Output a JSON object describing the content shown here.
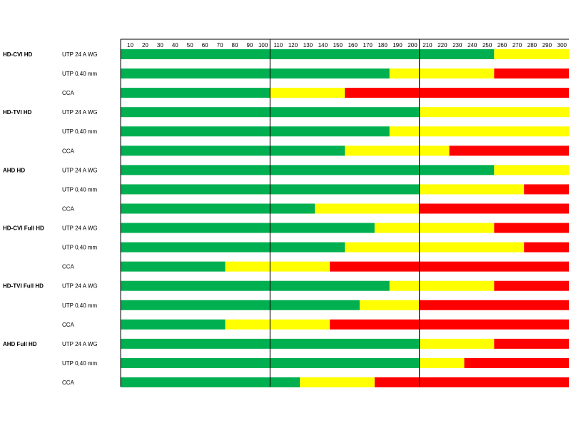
{
  "colors": {
    "good": "#00b050",
    "marginal": "#ffff00",
    "bad": "#ff0000",
    "line": "#000000"
  },
  "chart_data": {
    "type": "bar",
    "orientation": "horizontal-stacked",
    "x_ticks": [
      "10",
      "20",
      "30",
      "40",
      "50",
      "60",
      "70",
      "80",
      "90",
      "100",
      "110",
      "120",
      "130",
      "140",
      "150",
      "160",
      "170",
      "180",
      "190",
      "200",
      "210",
      "220",
      "230",
      "240",
      "250",
      "260",
      "270",
      "280",
      "290",
      "300"
    ],
    "xlim": [
      0,
      300
    ],
    "vertical_lines_at": [
      100,
      200
    ],
    "segments_order": [
      "good",
      "marginal",
      "bad"
    ],
    "rows": [
      {
        "group": "HD-CVI HD",
        "cable": "UTP 24 A WG",
        "good_end": 250,
        "marginal_end": 300
      },
      {
        "group": "",
        "cable": "UTP 0,40 mm",
        "good_end": 180,
        "marginal_end": 250
      },
      {
        "group": "",
        "cable": "CCA",
        "good_end": 100,
        "marginal_end": 150
      },
      {
        "group": "HD-TVI HD",
        "cable": "UTP 24 A WG",
        "good_end": 200,
        "marginal_end": 300
      },
      {
        "group": "",
        "cable": "UTP 0,40 mm",
        "good_end": 180,
        "marginal_end": 300
      },
      {
        "group": "",
        "cable": "CCA",
        "good_end": 150,
        "marginal_end": 220
      },
      {
        "group": "AHD HD",
        "cable": "UTP 24 A WG",
        "good_end": 250,
        "marginal_end": 300
      },
      {
        "group": "",
        "cable": "UTP 0,40 mm",
        "good_end": 200,
        "marginal_end": 270
      },
      {
        "group": "",
        "cable": "CCA",
        "good_end": 130,
        "marginal_end": 200
      },
      {
        "group": "HD-CVI Full HD",
        "cable": "UTP 24 A WG",
        "good_end": 170,
        "marginal_end": 250
      },
      {
        "group": "",
        "cable": "UTP 0,40 mm",
        "good_end": 150,
        "marginal_end": 270
      },
      {
        "group": "",
        "cable": "CCA",
        "good_end": 70,
        "marginal_end": 140
      },
      {
        "group": "HD-TVI Full HD",
        "cable": "UTP 24 A WG",
        "good_end": 180,
        "marginal_end": 250
      },
      {
        "group": "",
        "cable": "UTP 0,40 mm",
        "good_end": 160,
        "marginal_end": 200
      },
      {
        "group": "",
        "cable": "CCA",
        "good_end": 70,
        "marginal_end": 140
      },
      {
        "group": "AHD Full HD",
        "cable": "UTP 24 A WG",
        "good_end": 200,
        "marginal_end": 250
      },
      {
        "group": "",
        "cable": "UTP 0,40 mm",
        "good_end": 200,
        "marginal_end": 230
      },
      {
        "group": "",
        "cable": "CCA",
        "good_end": 120,
        "marginal_end": 170
      }
    ]
  }
}
